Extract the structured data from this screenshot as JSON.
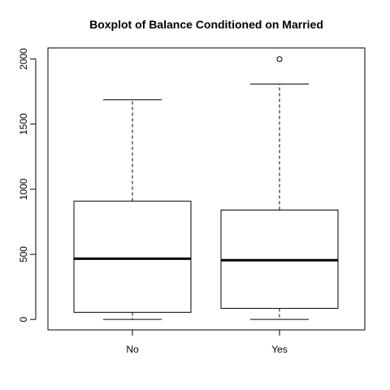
{
  "chart_data": {
    "type": "boxplot",
    "title": "Boxplot of Balance Conditioned on Married",
    "xlabel": "",
    "ylabel": "",
    "categories": [
      "No",
      "Yes"
    ],
    "boxes": [
      {
        "category": "No",
        "whisker_low": 0,
        "q1": 55,
        "median": 467,
        "q3": 908,
        "whisker_high": 1687,
        "outliers": []
      },
      {
        "category": "Yes",
        "whisker_low": 0,
        "q1": 85,
        "median": 455,
        "q3": 840,
        "whisker_high": 1808,
        "outliers": [
          1999
        ]
      }
    ],
    "ylim": [
      -80,
      2085
    ],
    "yticks": [
      0,
      500,
      1000,
      1500,
      2000
    ],
    "grid": false,
    "legend": "none",
    "colors": {
      "box_fill": "#ffffff",
      "stroke": "#000000"
    }
  }
}
